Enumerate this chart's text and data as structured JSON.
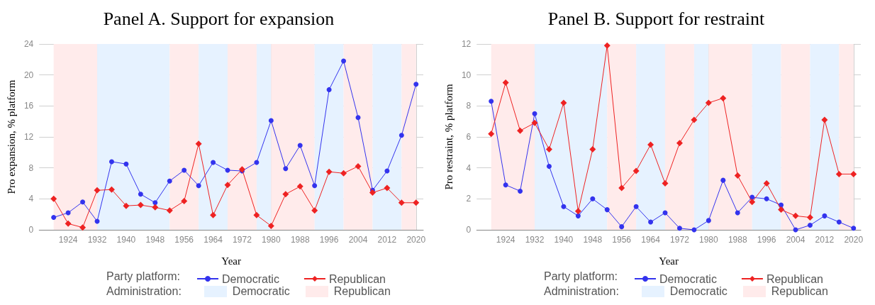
{
  "chart_data": [
    {
      "type": "line",
      "title": "Panel A. Support for expansion",
      "xlabel": "Year",
      "ylabel": "Pro expansion, % platform",
      "legend_title": "Party platform:",
      "annotations": [
        "Administration:"
      ],
      "x": [
        1920,
        1924,
        1928,
        1932,
        1936,
        1940,
        1944,
        1948,
        1952,
        1956,
        1960,
        1964,
        1968,
        1972,
        1976,
        1980,
        1984,
        1988,
        1992,
        1996,
        2000,
        2004,
        2008,
        2012,
        2016,
        2020
      ],
      "series": [
        {
          "name": "Democratic",
          "color": "#3333ee",
          "marker": "circle",
          "values": [
            1.6,
            2.2,
            3.6,
            1.1,
            8.8,
            8.5,
            4.6,
            3.5,
            6.3,
            7.7,
            5.7,
            8.7,
            7.7,
            7.6,
            8.7,
            14.1,
            7.9,
            10.9,
            5.7,
            18.1,
            21.8,
            14.5,
            5.1,
            7.6,
            12.2,
            18.8
          ]
        },
        {
          "name": "Republican",
          "color": "#ee2222",
          "marker": "diamond",
          "values": [
            4.0,
            0.8,
            0.3,
            5.1,
            5.2,
            3.1,
            3.2,
            2.9,
            2.5,
            3.7,
            11.1,
            1.9,
            5.8,
            7.8,
            1.9,
            0.5,
            4.6,
            5.6,
            2.5,
            7.5,
            7.3,
            8.2,
            4.8,
            5.4,
            3.5,
            3.5
          ]
        }
      ],
      "xlim": [
        1916,
        2022
      ],
      "xticks": [
        1924,
        1932,
        1940,
        1948,
        1956,
        1964,
        1972,
        1980,
        1988,
        1996,
        2004,
        2012,
        2020
      ],
      "ylim": [
        0,
        24
      ],
      "yticks": [
        0,
        4,
        8,
        12,
        16,
        20,
        24
      ],
      "grid": true,
      "legend": "bottom",
      "bands": [
        {
          "axis": "x",
          "from": 1920,
          "to": 1932,
          "color": "#ffebeb"
        },
        {
          "axis": "x",
          "from": 1932,
          "to": 1952,
          "label": "Democratic",
          "color": "#e6f2ff"
        },
        {
          "axis": "x",
          "from": 1952,
          "to": 1960,
          "label": "Republican",
          "color": "#ffebeb"
        },
        {
          "axis": "x",
          "from": 1960,
          "to": 1968,
          "color": "#e6f2ff"
        },
        {
          "axis": "x",
          "from": 1968,
          "to": 1976,
          "color": "#ffebeb"
        },
        {
          "axis": "x",
          "from": 1976,
          "to": 1980,
          "color": "#e6f2ff"
        },
        {
          "axis": "x",
          "from": 1980,
          "to": 1992,
          "color": "#ffebeb"
        },
        {
          "axis": "x",
          "from": 1992,
          "to": 2000,
          "color": "#e6f2ff"
        },
        {
          "axis": "x",
          "from": 2000,
          "to": 2008,
          "color": "#ffebeb"
        },
        {
          "axis": "x",
          "from": 2008,
          "to": 2016,
          "color": "#e6f2ff"
        },
        {
          "axis": "x",
          "from": 2016,
          "to": 2020,
          "color": "#ffebeb"
        }
      ]
    },
    {
      "type": "line",
      "title": "Panel B. Support for restraint",
      "xlabel": "Year",
      "ylabel": "Pro restraint, % platform",
      "legend_title": "Party platform:",
      "annotations": [
        "Administration:"
      ],
      "x": [
        1920,
        1924,
        1928,
        1932,
        1936,
        1940,
        1944,
        1948,
        1952,
        1956,
        1960,
        1964,
        1968,
        1972,
        1976,
        1980,
        1984,
        1988,
        1992,
        1996,
        2000,
        2004,
        2008,
        2012,
        2016,
        2020
      ],
      "series": [
        {
          "name": "Democratic",
          "color": "#3333ee",
          "marker": "circle",
          "values": [
            8.3,
            2.9,
            2.5,
            7.5,
            4.1,
            1.5,
            0.9,
            2.0,
            1.3,
            0.2,
            1.5,
            0.5,
            1.1,
            0.1,
            0.0,
            0.6,
            3.2,
            1.1,
            2.1,
            2.0,
            1.6,
            0.0,
            0.3,
            0.9,
            0.5,
            0.1
          ]
        },
        {
          "name": "Republican",
          "color": "#ee2222",
          "marker": "diamond",
          "values": [
            6.2,
            9.5,
            6.4,
            6.9,
            5.2,
            8.2,
            1.2,
            5.2,
            11.9,
            2.7,
            3.8,
            5.5,
            3.0,
            5.6,
            7.1,
            8.2,
            8.5,
            3.5,
            1.8,
            3.0,
            1.3,
            0.9,
            0.8,
            7.1,
            3.6,
            3.6
          ]
        }
      ],
      "xlim": [
        1916,
        2022
      ],
      "xticks": [
        1924,
        1932,
        1940,
        1948,
        1956,
        1964,
        1972,
        1980,
        1988,
        1996,
        2004,
        2012,
        2020
      ],
      "ylim": [
        0,
        12
      ],
      "yticks": [
        0,
        2,
        4,
        6,
        8,
        10,
        12
      ],
      "grid": true,
      "legend": "bottom",
      "bands": [
        {
          "axis": "x",
          "from": 1920,
          "to": 1932,
          "color": "#ffebeb"
        },
        {
          "axis": "x",
          "from": 1932,
          "to": 1952,
          "label": "Democratic",
          "color": "#e6f2ff"
        },
        {
          "axis": "x",
          "from": 1952,
          "to": 1960,
          "label": "Republican",
          "color": "#ffebeb"
        },
        {
          "axis": "x",
          "from": 1960,
          "to": 1968,
          "color": "#e6f2ff"
        },
        {
          "axis": "x",
          "from": 1968,
          "to": 1976,
          "color": "#ffebeb"
        },
        {
          "axis": "x",
          "from": 1976,
          "to": 1980,
          "color": "#e6f2ff"
        },
        {
          "axis": "x",
          "from": 1980,
          "to": 1992,
          "color": "#ffebeb"
        },
        {
          "axis": "x",
          "from": 1992,
          "to": 2000,
          "color": "#e6f2ff"
        },
        {
          "axis": "x",
          "from": 2000,
          "to": 2008,
          "color": "#ffebeb"
        },
        {
          "axis": "x",
          "from": 2008,
          "to": 2016,
          "color": "#e6f2ff"
        },
        {
          "axis": "x",
          "from": 2016,
          "to": 2020,
          "color": "#ffebeb"
        }
      ]
    }
  ]
}
